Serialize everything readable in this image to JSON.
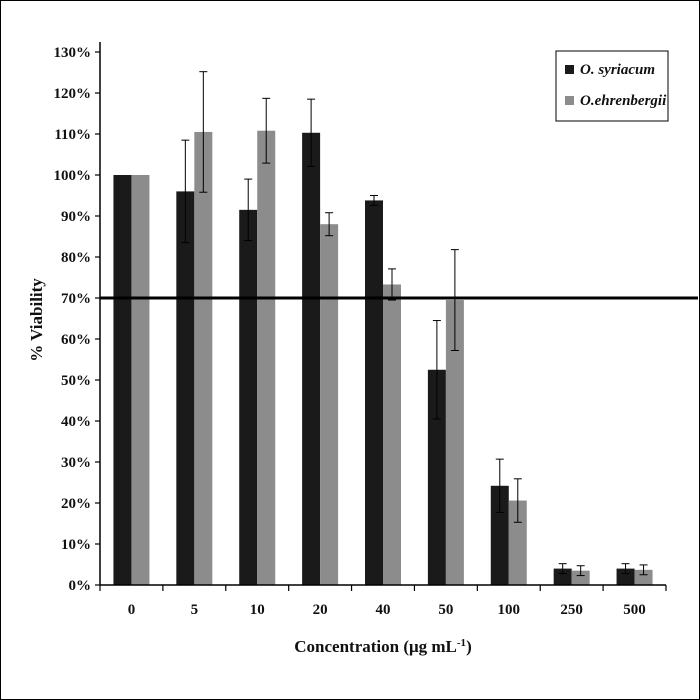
{
  "chart_data": {
    "type": "bar",
    "xlabel": "Concentration (μg mL",
    "xlabel_sup": "-1",
    "xlabel_end": ")",
    "ylabel": "% Viability",
    "ylim": [
      0,
      130
    ],
    "yticks": [
      "0%",
      "10%",
      "20%",
      "30%",
      "40%",
      "50%",
      "60%",
      "70%",
      "80%",
      "90%",
      "100%",
      "110%",
      "120%",
      "130%"
    ],
    "categories": [
      "0",
      "5",
      "10",
      "20",
      "40",
      "50",
      "100",
      "250",
      "500"
    ],
    "series": [
      {
        "name": "O. syriacum",
        "color": "#1a1a1a",
        "values": [
          100,
          96,
          91.5,
          110.3,
          93.8,
          52.5,
          24.2,
          4.0,
          4.0
        ],
        "errors": [
          0,
          12.5,
          7.5,
          8.2,
          1.2,
          12.0,
          6.5,
          1.2,
          1.2
        ]
      },
      {
        "name": "O.ehrenbergii",
        "color": "#8c8c8c",
        "values": [
          100,
          110.5,
          110.8,
          88.0,
          73.3,
          69.5,
          20.6,
          3.5,
          3.7
        ],
        "errors": [
          0,
          14.7,
          7.9,
          2.8,
          3.8,
          12.3,
          5.3,
          1.2,
          1.2
        ]
      }
    ],
    "reference_line": 70,
    "legend": "top-right"
  }
}
